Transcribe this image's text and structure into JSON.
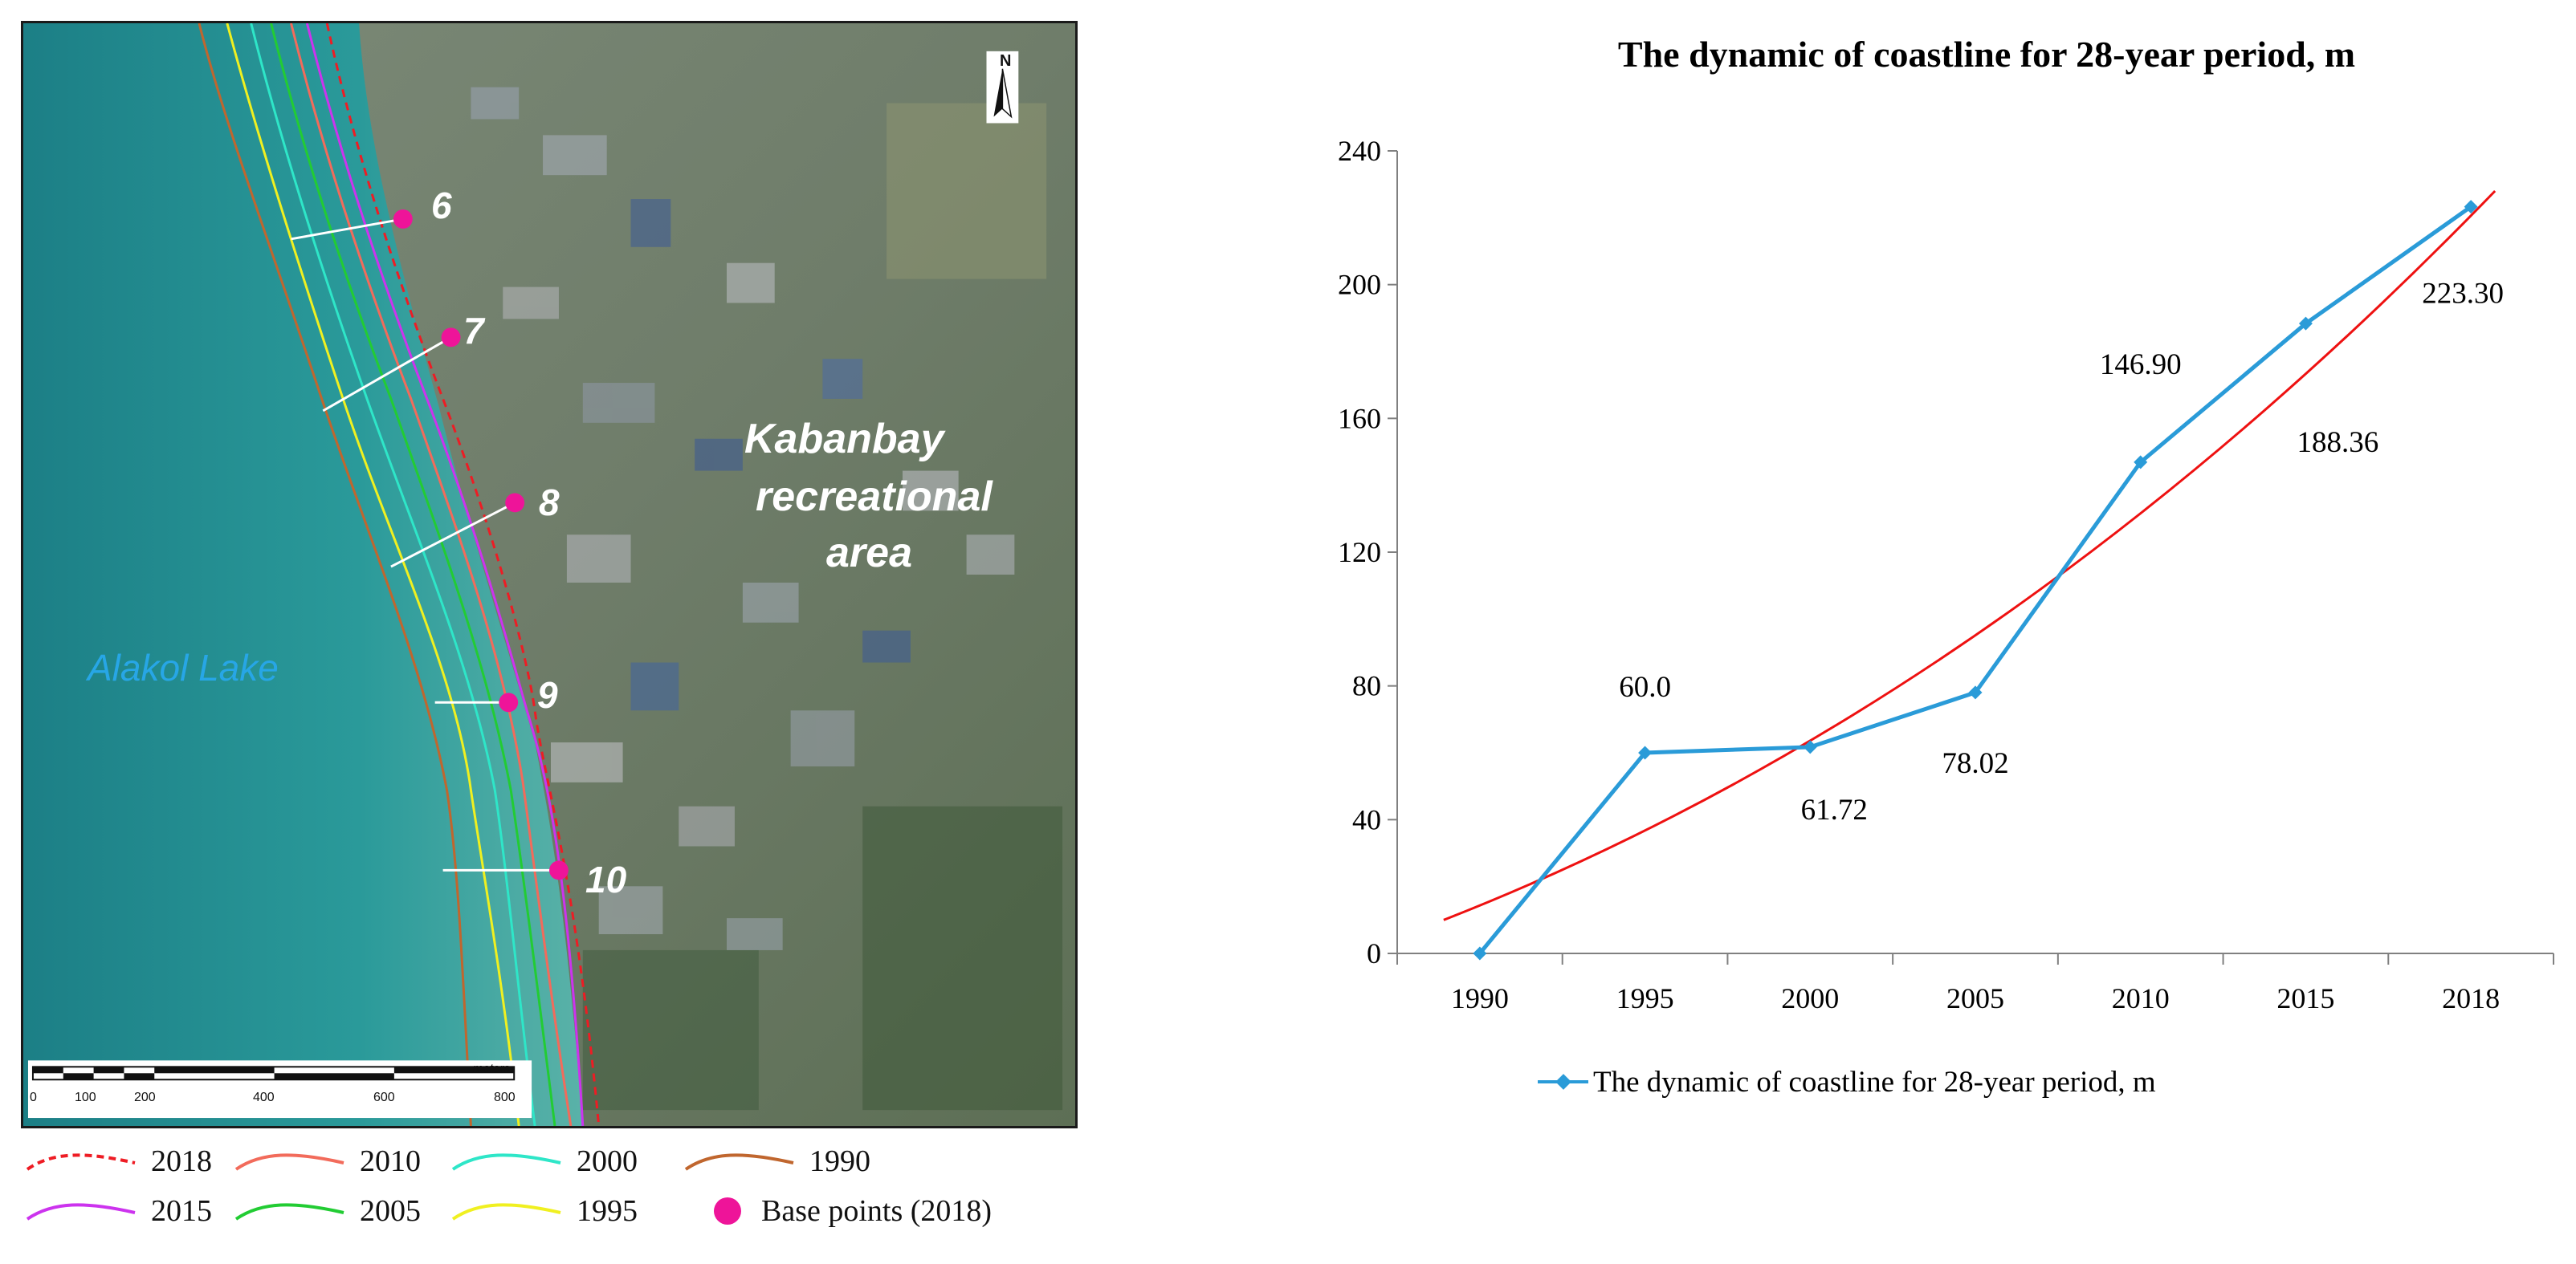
{
  "map": {
    "place_label_line1": "Kabanbay",
    "place_label_line2": "recreational",
    "place_label_line3": "area",
    "lake_label": "Alakol Lake",
    "north_label": "N",
    "scale_unit": "meters",
    "scale_ticks": [
      "0",
      "100",
      "200",
      "400",
      "600",
      "800"
    ],
    "base_points": [
      "6",
      "7",
      "8",
      "9",
      "10"
    ],
    "legend": [
      {
        "label": "2018",
        "color": "#ee1c24",
        "style": "dashed"
      },
      {
        "label": "2010",
        "color": "#f26b5b",
        "style": "solid"
      },
      {
        "label": "2000",
        "color": "#2ee6c8",
        "style": "solid"
      },
      {
        "label": "1990",
        "color": "#c0662e",
        "style": "solid"
      },
      {
        "label": "2015",
        "color": "#cc33ee",
        "style": "solid"
      },
      {
        "label": "2005",
        "color": "#22cc33",
        "style": "solid"
      },
      {
        "label": "1995",
        "color": "#f0f020",
        "style": "solid"
      },
      {
        "label": "Base points (2018)",
        "color": "#ee1499",
        "style": "dot"
      }
    ]
  },
  "chart_data": {
    "type": "line",
    "title": "The dynamic of coastline for 28-year period, m",
    "categories": [
      "1990",
      "1995",
      "2000",
      "2005",
      "2010",
      "2015",
      "2018"
    ],
    "x": [
      1990,
      1995,
      2000,
      2005,
      2010,
      2015,
      2018
    ],
    "series": [
      {
        "name": "The dynamic of coastline for 28-year period, m",
        "values": [
          0,
          60.0,
          61.72,
          78.02,
          146.9,
          188.36,
          223.3
        ],
        "labels": [
          "",
          "60.0",
          "61.72",
          "78.02",
          "146.90",
          "188.36",
          "223.30"
        ],
        "color": "#2a9bd8",
        "marker": "diamond"
      }
    ],
    "trendline": {
      "type": "polynomial",
      "color": "#ee1111",
      "start": 10,
      "end": 228
    },
    "ylim": [
      0,
      240
    ],
    "yticks": [
      "0",
      "40",
      "80",
      "120",
      "160",
      "200",
      "240"
    ],
    "xlabel": "",
    "ylabel": "",
    "grid": false,
    "legend_position": "bottom"
  }
}
